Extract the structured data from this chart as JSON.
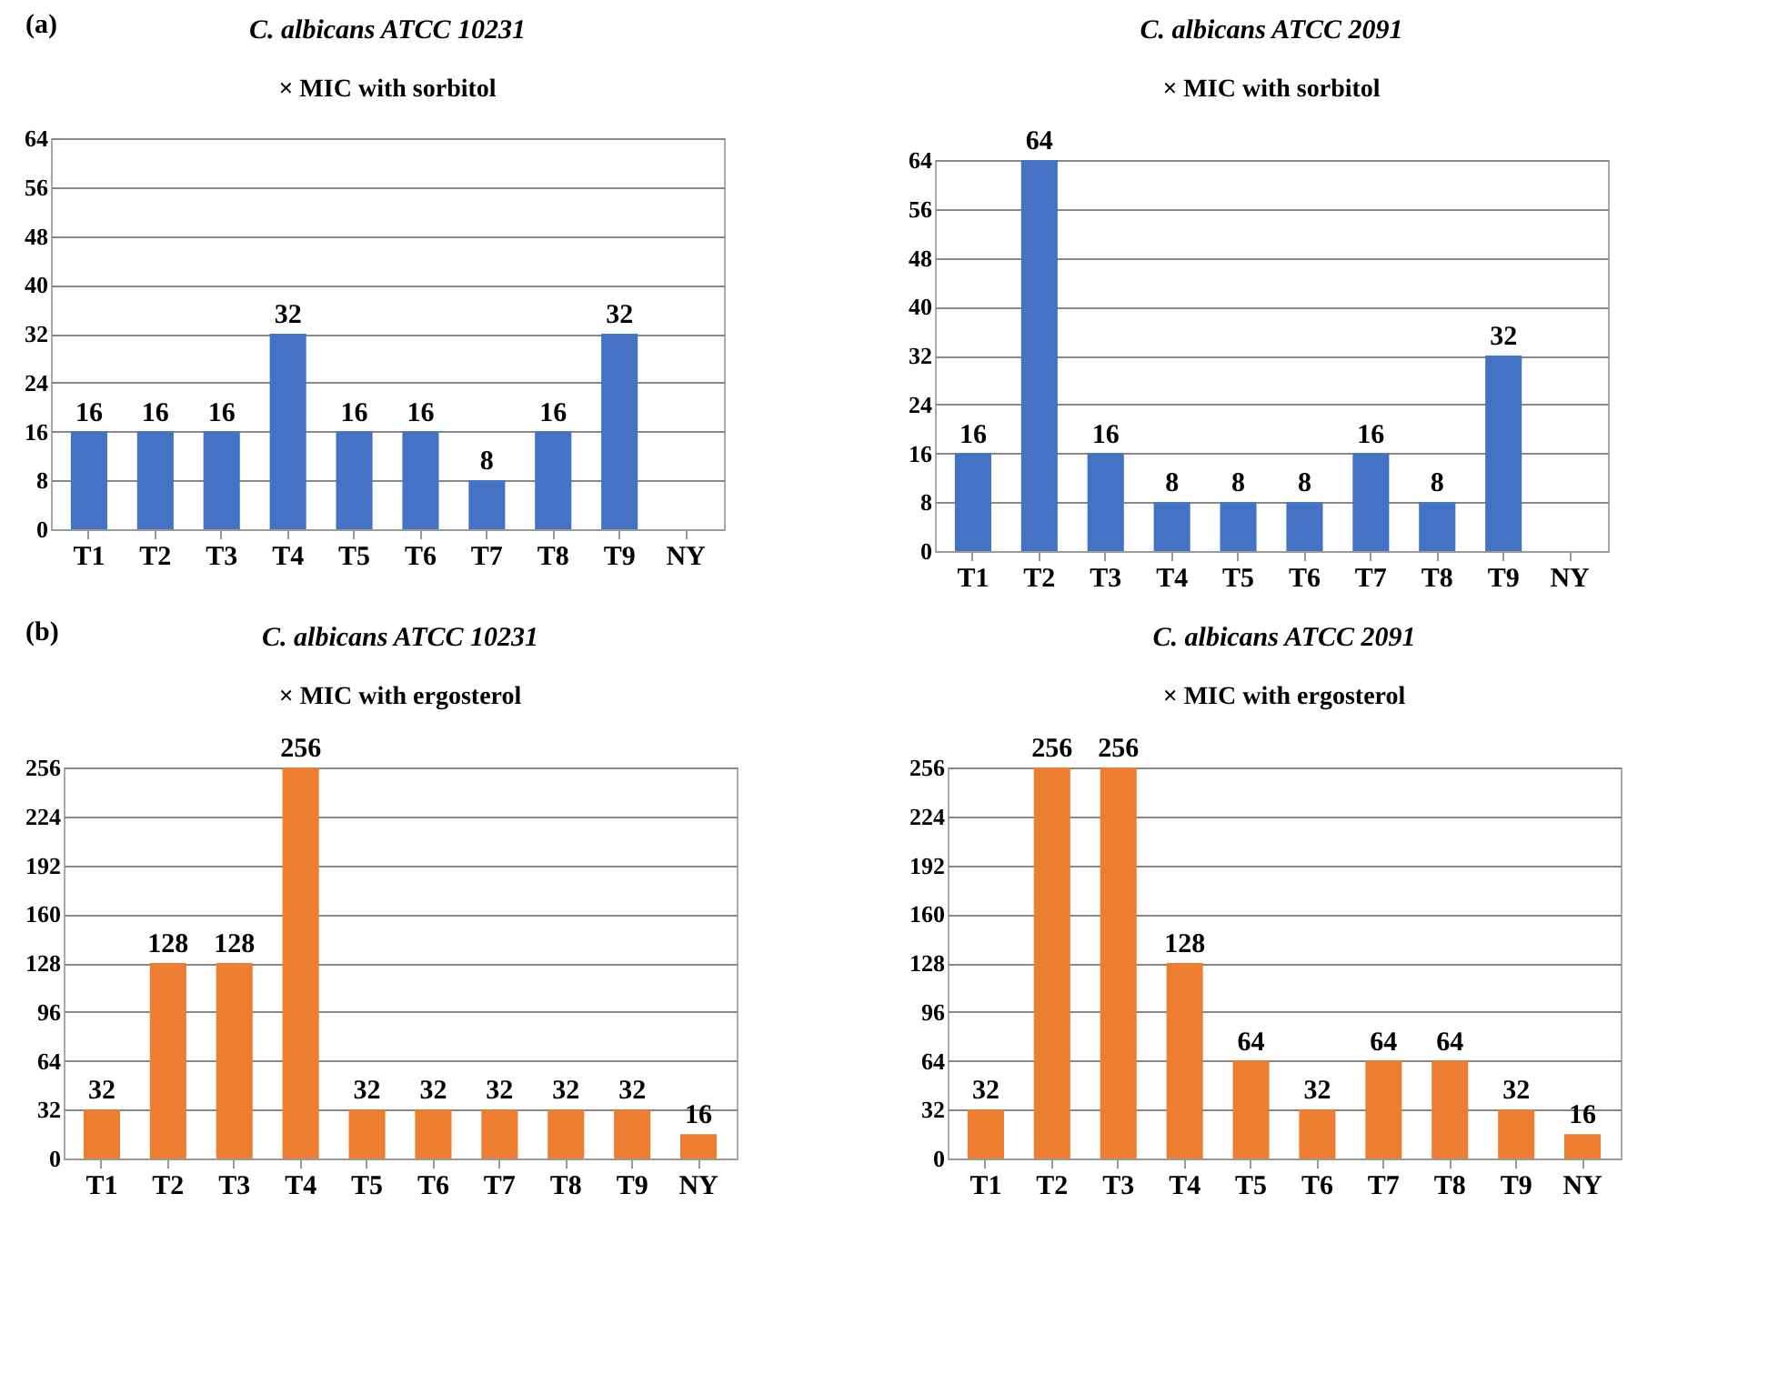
{
  "chart_data": [
    {
      "type": "bar",
      "title": "C. albicans ATCC 10231",
      "subtitle": "× MIC with sorbitol",
      "annotations": [
        "(a)"
      ],
      "categories": [
        "T1",
        "T2",
        "T3",
        "T4",
        "T5",
        "T6",
        "T7",
        "T8",
        "T9",
        "NY"
      ],
      "values": [
        16,
        16,
        16,
        32,
        16,
        16,
        8,
        16,
        32,
        0
      ],
      "value_labels": [
        "16",
        "16",
        "16",
        "32",
        "16",
        "16",
        "8",
        "16",
        "32",
        null
      ],
      "color": "#4472c4",
      "ylim": [
        0,
        64
      ],
      "yticks": [
        0,
        8,
        16,
        24,
        32,
        40,
        48,
        56,
        64
      ],
      "grid": "y"
    },
    {
      "type": "bar",
      "title": "C. albicans ATCC 2091",
      "subtitle": "× MIC with sorbitol",
      "categories": [
        "T1",
        "T2",
        "T3",
        "T4",
        "T5",
        "T6",
        "T7",
        "T8",
        "T9",
        "NY"
      ],
      "values": [
        16,
        64,
        16,
        8,
        8,
        8,
        16,
        8,
        32,
        0
      ],
      "value_labels": [
        "16",
        "64",
        "16",
        "8",
        "8",
        "8",
        "16",
        "8",
        "32",
        null
      ],
      "color": "#4472c4",
      "ylim": [
        0,
        64
      ],
      "yticks": [
        0,
        8,
        16,
        24,
        32,
        40,
        48,
        56,
        64
      ],
      "grid": "y"
    },
    {
      "type": "bar",
      "title": "C. albicans ATCC 10231",
      "subtitle": "× MIC with ergosterol",
      "annotations": [
        "(b)"
      ],
      "categories": [
        "T1",
        "T2",
        "T3",
        "T4",
        "T5",
        "T6",
        "T7",
        "T8",
        "T9",
        "NY"
      ],
      "values": [
        32,
        128,
        128,
        256,
        32,
        32,
        32,
        32,
        32,
        16
      ],
      "value_labels": [
        "32",
        "128",
        "128",
        "256",
        "32",
        "32",
        "32",
        "32",
        "32",
        "16"
      ],
      "color": "#ed7d31",
      "ylim": [
        0,
        256
      ],
      "yticks": [
        0,
        32,
        64,
        96,
        128,
        160,
        192,
        224,
        256
      ],
      "grid": "y"
    },
    {
      "type": "bar",
      "title": "C. albicans ATCC 2091",
      "subtitle": "× MIC with ergosterol",
      "categories": [
        "T1",
        "T2",
        "T3",
        "T4",
        "T5",
        "T6",
        "T7",
        "T8",
        "T9",
        "NY"
      ],
      "values": [
        32,
        256,
        256,
        128,
        64,
        32,
        64,
        64,
        32,
        16
      ],
      "value_labels": [
        "32",
        "256",
        "256",
        "128",
        "64",
        "32",
        "64",
        "64",
        "32",
        "16"
      ],
      "color": "#ed7d31",
      "ylim": [
        0,
        256
      ],
      "yticks": [
        0,
        32,
        64,
        96,
        128,
        160,
        192,
        224,
        256
      ],
      "grid": "y"
    }
  ]
}
